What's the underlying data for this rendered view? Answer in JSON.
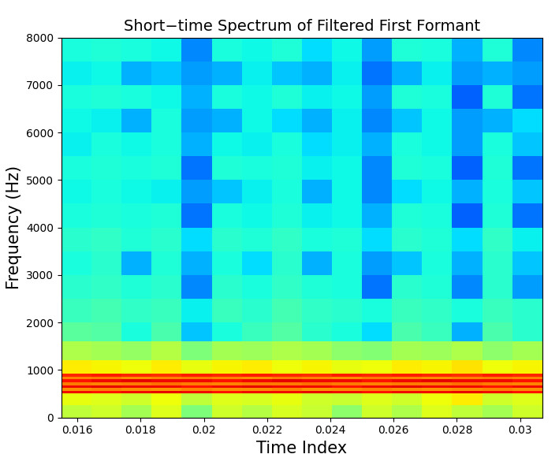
{
  "chart_data": {
    "type": "heatmap",
    "title": "Short−time Spectrum of Filtered First Formant",
    "x_label": "Time Index",
    "y_label": "Frequency (Hz)",
    "color": "jet",
    "color_range": [
      0,
      100
    ],
    "xlim": [
      0.0155,
      0.0307
    ],
    "ylim": [
      0,
      8000
    ],
    "xticks": [
      0.016,
      0.018,
      0.02,
      0.022,
      0.024,
      0.026,
      0.028,
      0.03
    ],
    "yticks": [
      0,
      1000,
      2000,
      3000,
      4000,
      5000,
      6000,
      7000,
      8000
    ],
    "x_edges": [
      0.0155,
      0.01645,
      0.0174,
      0.01835,
      0.0193,
      0.02025,
      0.0212,
      0.02215,
      0.0231,
      0.02405,
      0.025,
      0.02595,
      0.0269,
      0.02785,
      0.0288,
      0.02975,
      0.0307
    ],
    "y_edges": [
      0,
      250,
      500,
      560,
      620,
      680,
      740,
      800,
      860,
      920,
      1200,
      1600,
      2000,
      2500,
      3000,
      3500,
      4000,
      4500,
      5000,
      5500,
      6000,
      6500,
      7000,
      7500,
      8000
    ],
    "cells": [
      [
        58,
        60,
        55,
        62,
        50,
        60,
        57,
        61,
        59,
        52,
        60,
        56,
        62,
        58,
        55,
        60
      ],
      [
        63,
        62,
        60,
        64,
        58,
        62,
        61,
        63,
        60,
        59,
        62,
        60,
        64,
        66,
        60,
        62
      ],
      [
        90,
        89,
        90,
        91,
        90,
        89,
        90,
        90,
        91,
        90,
        89,
        90,
        90,
        91,
        90,
        89
      ],
      [
        76,
        77,
        76,
        75,
        77,
        76,
        76,
        77,
        75,
        76,
        77,
        76,
        75,
        76,
        77,
        76
      ],
      [
        90,
        91,
        90,
        90,
        89,
        90,
        91,
        90,
        90,
        89,
        90,
        91,
        90,
        90,
        89,
        90
      ],
      [
        78,
        77,
        78,
        79,
        78,
        77,
        78,
        78,
        79,
        78,
        77,
        78,
        78,
        79,
        78,
        77
      ],
      [
        89,
        90,
        91,
        90,
        90,
        89,
        90,
        91,
        90,
        90,
        89,
        90,
        91,
        90,
        90,
        89
      ],
      [
        77,
        78,
        76,
        77,
        78,
        77,
        76,
        78,
        77,
        76,
        78,
        77,
        76,
        77,
        78,
        77
      ],
      [
        87,
        88,
        87,
        86,
        88,
        87,
        88,
        87,
        86,
        88,
        87,
        88,
        87,
        86,
        88,
        87
      ],
      [
        66,
        65,
        64,
        66,
        63,
        65,
        66,
        64,
        65,
        63,
        64,
        66,
        65,
        67,
        64,
        65
      ],
      [
        56,
        55,
        53,
        57,
        50,
        55,
        54,
        56,
        55,
        52,
        51,
        55,
        54,
        56,
        52,
        55
      ],
      [
        46,
        45,
        38,
        44,
        32,
        38,
        42,
        45,
        40,
        38,
        34,
        44,
        42,
        30,
        44,
        40
      ],
      [
        42,
        43,
        41,
        42,
        36,
        42,
        40,
        43,
        41,
        40,
        38,
        42,
        41,
        38,
        42,
        40
      ],
      [
        40,
        41,
        39,
        40,
        26,
        40,
        38,
        41,
        39,
        38,
        24,
        40,
        39,
        26,
        40,
        28
      ],
      [
        38,
        40,
        30,
        39,
        30,
        38,
        34,
        40,
        30,
        38,
        28,
        32,
        38,
        30,
        40,
        32
      ],
      [
        40,
        41,
        39,
        40,
        34,
        40,
        39,
        41,
        38,
        39,
        34,
        40,
        39,
        34,
        41,
        36
      ],
      [
        38,
        39,
        38,
        39,
        24,
        38,
        37,
        39,
        36,
        37,
        30,
        39,
        38,
        22,
        39,
        24
      ],
      [
        37,
        38,
        37,
        36,
        28,
        32,
        36,
        38,
        30,
        37,
        26,
        34,
        37,
        30,
        38,
        32
      ],
      [
        38,
        39,
        38,
        39,
        24,
        39,
        38,
        39,
        36,
        37,
        26,
        39,
        38,
        22,
        39,
        24
      ],
      [
        36,
        38,
        37,
        38,
        30,
        37,
        36,
        38,
        34,
        36,
        30,
        38,
        37,
        28,
        38,
        32
      ],
      [
        37,
        36,
        30,
        38,
        28,
        30,
        37,
        34,
        30,
        36,
        26,
        32,
        37,
        28,
        30,
        34
      ],
      [
        38,
        39,
        38,
        37,
        30,
        38,
        37,
        39,
        36,
        37,
        28,
        39,
        38,
        22,
        39,
        24
      ],
      [
        36,
        37,
        30,
        32,
        28,
        30,
        36,
        32,
        30,
        36,
        24,
        30,
        36,
        28,
        30,
        28
      ],
      [
        38,
        39,
        38,
        37,
        26,
        38,
        37,
        39,
        34,
        37,
        28,
        39,
        38,
        30,
        39,
        26
      ]
    ]
  }
}
